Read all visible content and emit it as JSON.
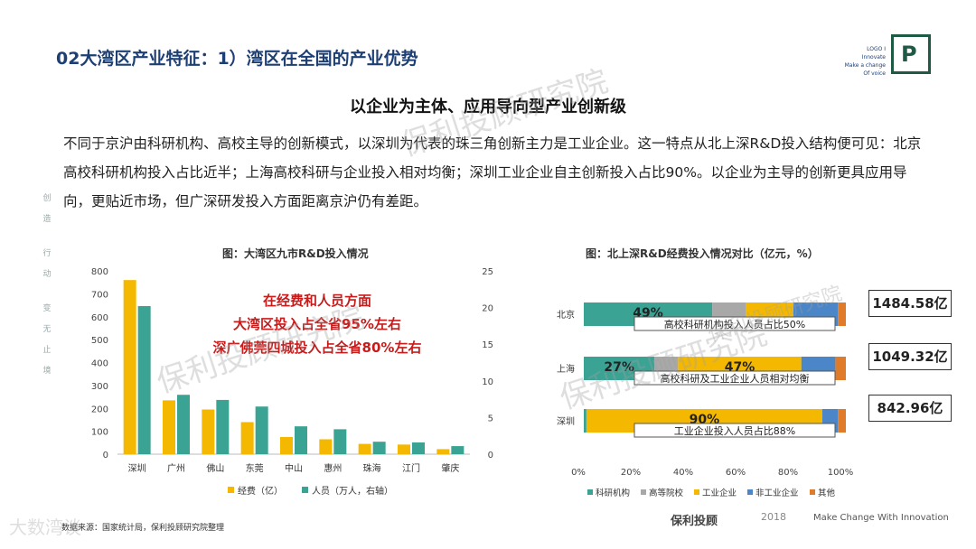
{
  "header": {
    "title": "02大湾区产业特征：1）湾区在全国的产业优势"
  },
  "logo": {
    "lines": [
      "LOGO I",
      "Innovate",
      "Make a change",
      "Of voice"
    ],
    "mark": "P"
  },
  "subtitle": "以企业为主体、应用导向型产业创新级",
  "paragraph": "不同于京沪由科研机构、高校主导的创新模式，以深圳为代表的珠三角创新主力是工业企业。这一特点从北上深R&D投入结构便可见：北京高校科研机构投入占比近半；上海高校科研与企业投入相对均衡；深圳工业企业自主创新投入占比90%。以企业为主导的创新更具应用导向，更贴近市场，但广深研发投入方面距离京沪仍有差距。",
  "side_text": [
    "创",
    "造",
    "行",
    "动",
    "变",
    "无",
    "止",
    "境"
  ],
  "left_chart": {
    "title": "图：大湾区九市R&D投入情况",
    "annotations": [
      "在经费和人员方面",
      "大湾区投入占全省95%左右",
      "深广佛莞四城投入占全省80%左右"
    ]
  },
  "right_chart": {
    "title": "图：北上深R&D经费投入情况对比（亿元，%）",
    "totals": [
      "1484.58亿",
      "1049.32亿",
      "842.96亿"
    ]
  },
  "chart_data": [
    {
      "type": "bar",
      "title": "图：大湾区九市R&D投入情况",
      "categories": [
        "深圳",
        "广州",
        "佛山",
        "东莞",
        "中山",
        "惠州",
        "珠海",
        "江门",
        "肇庆"
      ],
      "series": [
        {
          "name": "经费（亿）",
          "axis": "left",
          "color": "#f5b800",
          "values": [
            760,
            235,
            195,
            140,
            75,
            65,
            45,
            42,
            22
          ]
        },
        {
          "name": "人员（万人，右轴）",
          "axis": "right",
          "color": "#3aa394",
          "values": [
            20.2,
            8.1,
            7.4,
            6.5,
            3.8,
            3.4,
            1.7,
            1.6,
            1.1
          ]
        }
      ],
      "ylim": [
        0,
        800
      ],
      "y_ticks": [
        "0",
        "100",
        "200",
        "300",
        "400",
        "500",
        "600",
        "700",
        "800"
      ],
      "y2lim": [
        0,
        25
      ],
      "y2_ticks": [
        "0",
        "5",
        "10",
        "15",
        "20",
        "25"
      ],
      "legend_position": "bottom"
    },
    {
      "type": "bar",
      "orientation": "horizontal",
      "stacked": true,
      "title": "图：北上深R&D经费投入情况对比（亿元，%）",
      "categories": [
        "北京",
        "上海",
        "深圳"
      ],
      "series": [
        {
          "name": "科研机构",
          "color": "#3aa394",
          "values": [
            49,
            27,
            1
          ]
        },
        {
          "name": "高等院校",
          "color": "#a8a8a8",
          "values": [
            13,
            9,
            0
          ]
        },
        {
          "name": "工业企业",
          "color": "#f5b800",
          "values": [
            18,
            47,
            90
          ]
        },
        {
          "name": "非工业企业",
          "color": "#4a86c8",
          "values": [
            17,
            13,
            6
          ]
        },
        {
          "name": "其他",
          "color": "#e07b2a",
          "values": [
            3,
            4,
            3
          ]
        }
      ],
      "data_labels": [
        {
          "row": 0,
          "series": 0,
          "text": "49%"
        },
        {
          "row": 1,
          "series": 0,
          "text": "27%"
        },
        {
          "row": 1,
          "series": 2,
          "text": "47%"
        },
        {
          "row": 2,
          "series": 2,
          "text": "90%"
        }
      ],
      "row_notes": [
        "高校科研机构投入人员占比50%",
        "高校科研及工业企业人员相对均衡",
        "工业企业投入人员占比88%"
      ],
      "xlim": [
        0,
        100
      ],
      "x_ticks": [
        "0%",
        "20%",
        "40%",
        "60%",
        "80%",
        "100%"
      ],
      "legend_position": "bottom"
    }
  ],
  "source": "数据来源：国家统计局，保利投顾研究院整理",
  "footer": {
    "brand": "保利投顾",
    "year": "2018",
    "tagline": "Make Change With Innovation"
  },
  "watermark": [
    "保利投顾研究院",
    "保利投顾研究院",
    "保利投顾研究院",
    "保利投顾研究院",
    "大数湾谈"
  ]
}
